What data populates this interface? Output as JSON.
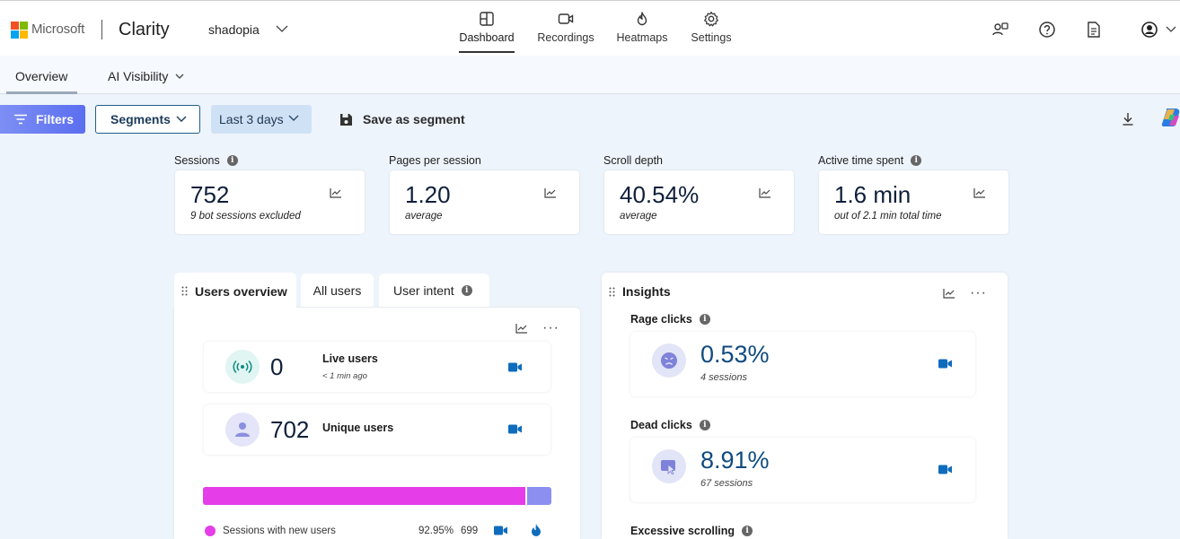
{
  "header": {
    "brand": "Microsoft",
    "app": "Clarity",
    "project": "shadopia",
    "tabs": [
      {
        "label": "Dashboard",
        "icon": "dashboard-icon"
      },
      {
        "label": "Recordings",
        "icon": "video-camera-icon"
      },
      {
        "label": "Heatmaps",
        "icon": "flame-icon"
      },
      {
        "label": "Settings",
        "icon": "gear-icon"
      }
    ],
    "active_tab": "Dashboard"
  },
  "subnav": {
    "overview": "Overview",
    "ai_visibility": "AI Visibility"
  },
  "toolbar": {
    "filters": "Filters",
    "segments": "Segments",
    "date_range": "Last 3 days",
    "save_segment": "Save as segment"
  },
  "metrics": [
    {
      "label": "Sessions",
      "value": "752",
      "sub": "9 bot sessions excluded",
      "info": true
    },
    {
      "label": "Pages per session",
      "value": "1.20",
      "sub": "average",
      "info": false
    },
    {
      "label": "Scroll depth",
      "value": "40.54%",
      "sub": "average",
      "info": false
    },
    {
      "label": "Active time spent",
      "value": "1.6 min",
      "sub": "out of 2.1 min total time",
      "info": true
    }
  ],
  "users_panel": {
    "tabs": [
      "Users overview",
      "All users",
      "User intent"
    ],
    "live": {
      "value": "0",
      "title": "Live users",
      "sub": "< 1 min ago"
    },
    "unique": {
      "value": "702",
      "title": "Unique users"
    },
    "split": {
      "new_fraction": 0.9295
    },
    "legend": {
      "label": "Sessions with new users",
      "percent": "92.95%",
      "count": "699"
    }
  },
  "insights": {
    "title": "Insights",
    "items": [
      {
        "title": "Rage clicks",
        "value": "0.53%",
        "sub": "4 sessions"
      },
      {
        "title": "Dead clicks",
        "value": "8.91%",
        "sub": "67 sessions"
      },
      {
        "title": "Excessive scrolling"
      }
    ]
  },
  "colors": {
    "filters_start": "#7d8ff4",
    "filters_end": "#5b6ef0",
    "new_users": "#e53de8",
    "returning_users": "#8d8ff0",
    "video_blue": "#0f6cbd",
    "insight_value": "#0f4a80"
  }
}
